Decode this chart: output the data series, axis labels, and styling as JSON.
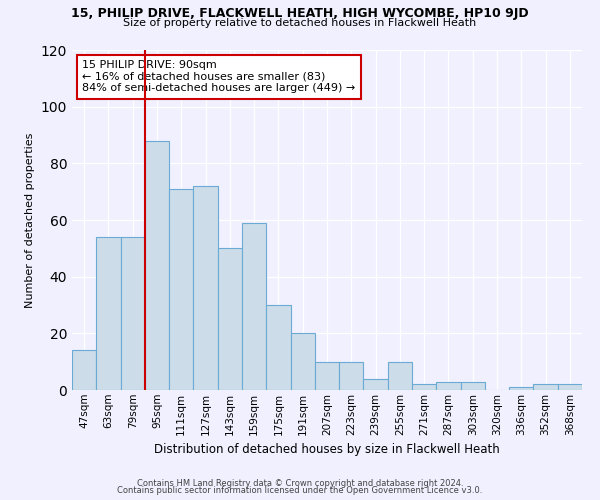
{
  "title_line1": "15, PHILIP DRIVE, FLACKWELL HEATH, HIGH WYCOMBE, HP10 9JD",
  "title_line2": "Size of property relative to detached houses in Flackwell Heath",
  "xlabel": "Distribution of detached houses by size in Flackwell Heath",
  "ylabel": "Number of detached properties",
  "bar_labels": [
    "47sqm",
    "63sqm",
    "79sqm",
    "95sqm",
    "111sqm",
    "127sqm",
    "143sqm",
    "159sqm",
    "175sqm",
    "191sqm",
    "207sqm",
    "223sqm",
    "239sqm",
    "255sqm",
    "271sqm",
    "287sqm",
    "303sqm",
    "320sqm",
    "336sqm",
    "352sqm",
    "368sqm"
  ],
  "bar_values": [
    14,
    54,
    54,
    88,
    71,
    72,
    50,
    59,
    30,
    20,
    10,
    10,
    4,
    10,
    2,
    3,
    3,
    0,
    1,
    2,
    2
  ],
  "bar_color": "#ccdce8",
  "bar_edge_color": "#6aaad4",
  "vline_color": "#cc0000",
  "vline_x_idx": 3,
  "ylim": [
    0,
    120
  ],
  "yticks": [
    0,
    20,
    40,
    60,
    80,
    100,
    120
  ],
  "annotation_text": "15 PHILIP DRIVE: 90sqm\n← 16% of detached houses are smaller (83)\n84% of semi-detached houses are larger (449) →",
  "annotation_box_facecolor": "white",
  "annotation_box_edgecolor": "#cc0000",
  "footer_line1": "Contains HM Land Registry data © Crown copyright and database right 2024.",
  "footer_line2": "Contains public sector information licensed under the Open Government Licence v3.0.",
  "background_color": "#f0f0ff"
}
